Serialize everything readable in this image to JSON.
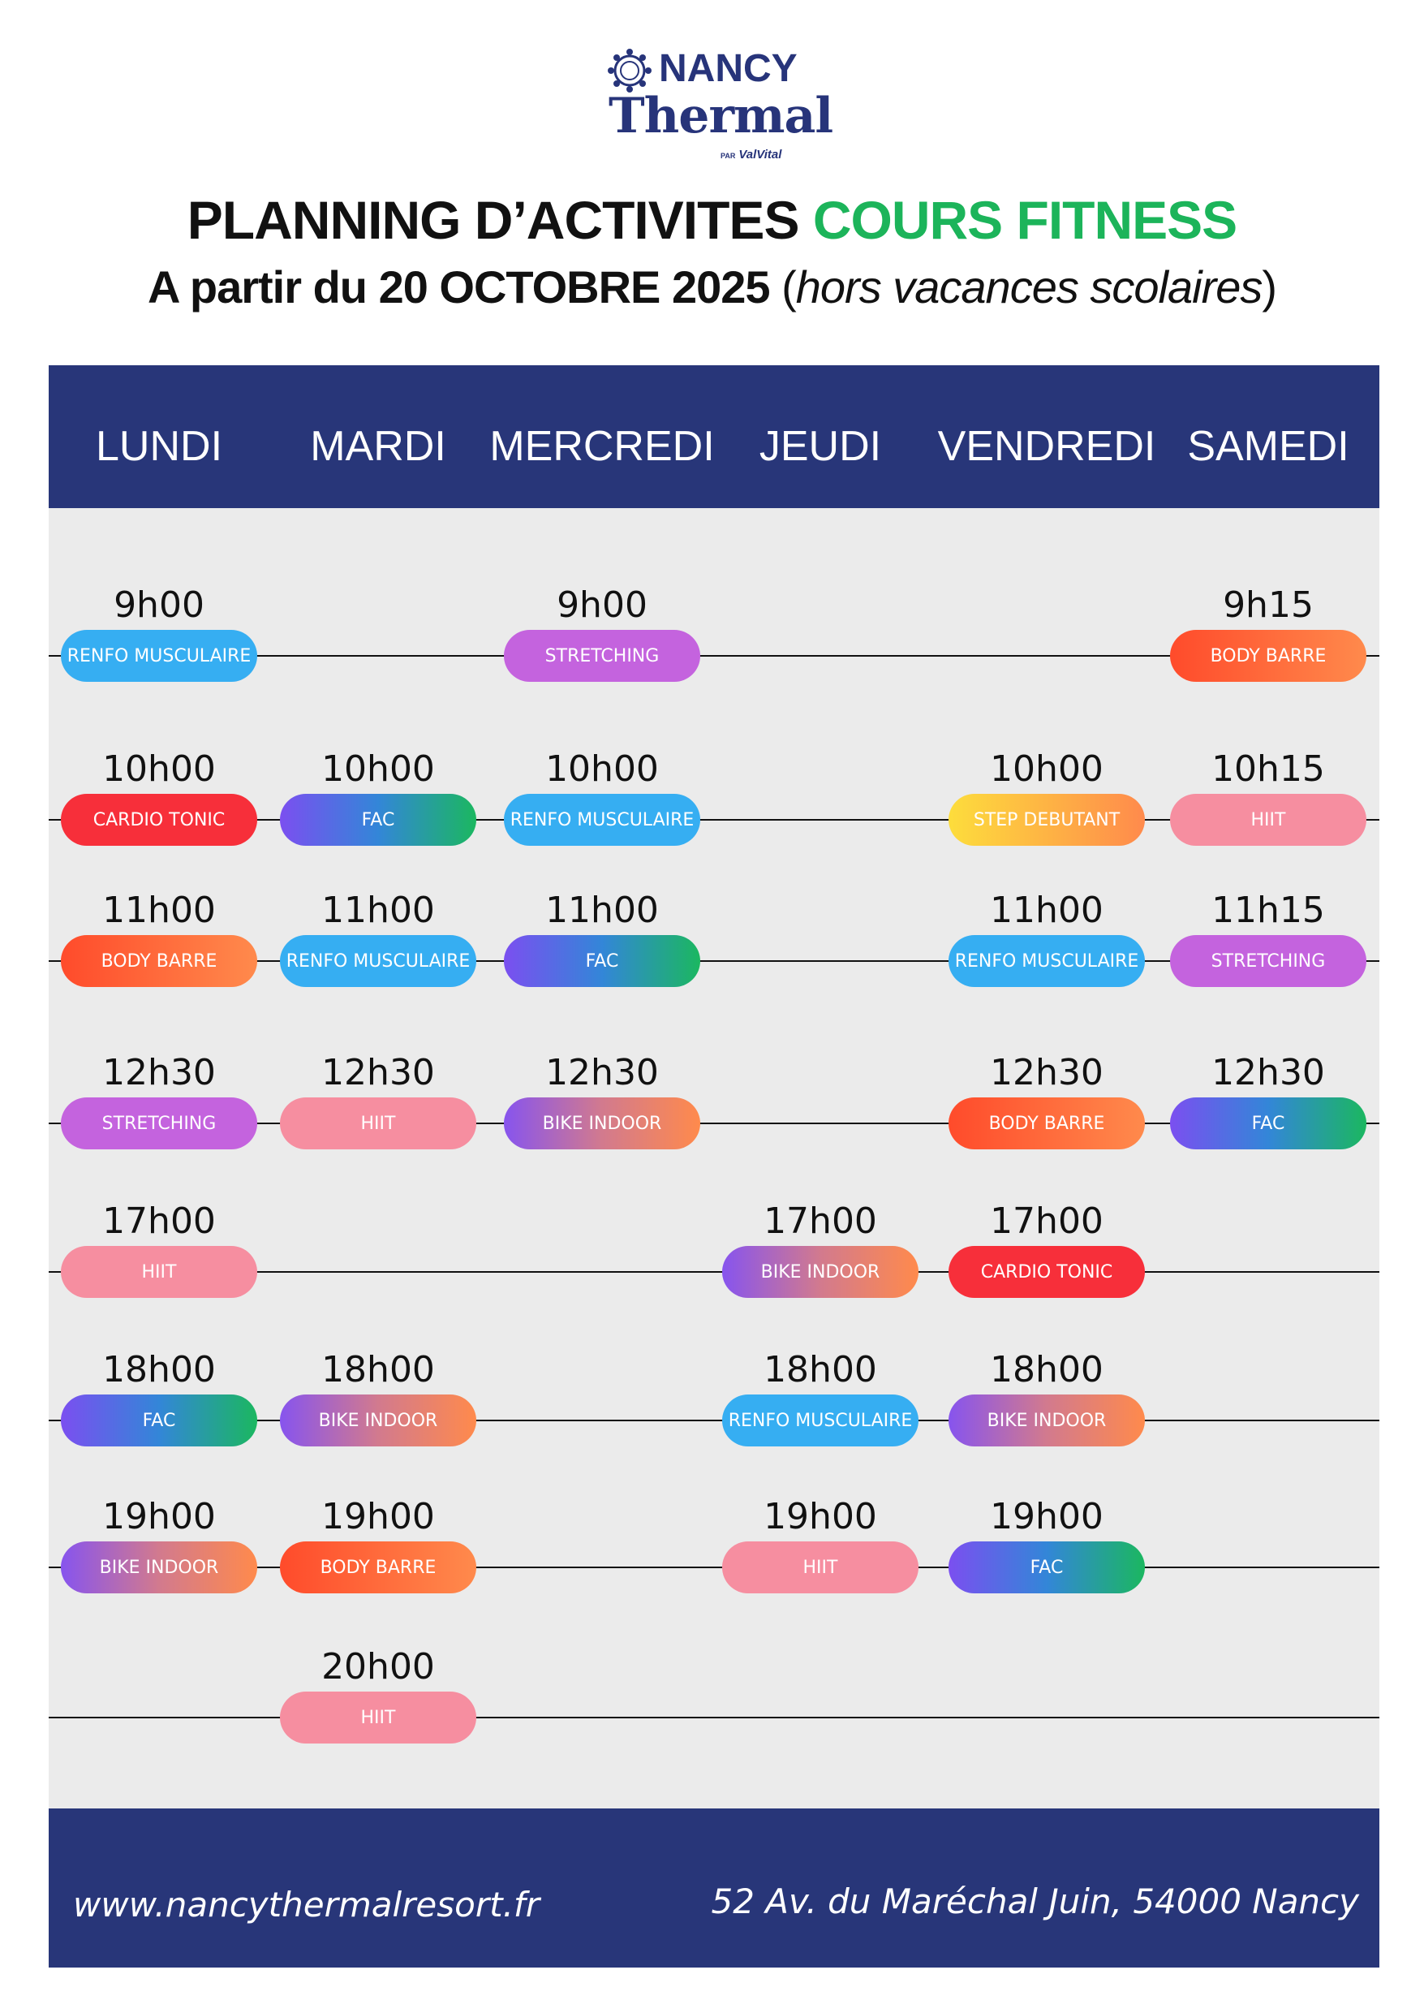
{
  "logo": {
    "name_top": "NANCY",
    "name_main": "Thermal",
    "par": "PAR",
    "brand": "ValVital"
  },
  "title": {
    "line1_a": "PLANNING D’ACTIVITES ",
    "line1_b": "COURS FITNESS",
    "line2_bold": "A partir du 20 OCTOBRE 2025 ",
    "line2_italic_open": "(",
    "line2_italic": "hors vacances scolaires",
    "line2_italic_close": ")"
  },
  "colors": {
    "navy": "#283679",
    "green_title": "#1cb45a",
    "panel": "#ebebeb",
    "RENFO MUSCULAIRE": "#36aef2",
    "STRETCHING": "#c463de",
    "BODY BARRE": "linear-gradient(90deg,#ff4b2b,#ff8a4c)",
    "CARDIO TONIC": "#f72f3a",
    "FAC": "linear-gradient(90deg,#7b4ff0,#3386d8,#1bb760)",
    "STEP DEBUTANT": "linear-gradient(90deg,#fddd3c,#ff8a4c)",
    "HIIT": "#f68ea0",
    "BIKE INDOOR": "linear-gradient(90deg,#8754ee,#d27a8e,#ff8a4c)"
  },
  "days": [
    "LUNDI",
    "MARDI",
    "MERCREDI",
    "JEUDI",
    "VENDREDI",
    "SAMEDI"
  ],
  "sessions": [
    {
      "day": 0,
      "row": 0,
      "time": "9h00",
      "activity": "RENFO MUSCULAIRE"
    },
    {
      "day": 2,
      "row": 0,
      "time": "9h00",
      "activity": "STRETCHING"
    },
    {
      "day": 5,
      "row": 0,
      "time": "9h15",
      "activity": "BODY BARRE"
    },
    {
      "day": 0,
      "row": 1,
      "time": "10h00",
      "activity": "CARDIO TONIC"
    },
    {
      "day": 1,
      "row": 1,
      "time": "10h00",
      "activity": "FAC"
    },
    {
      "day": 2,
      "row": 1,
      "time": "10h00",
      "activity": "RENFO MUSCULAIRE"
    },
    {
      "day": 4,
      "row": 1,
      "time": "10h00",
      "activity": "STEP DEBUTANT"
    },
    {
      "day": 5,
      "row": 1,
      "time": "10h15",
      "activity": "HIIT"
    },
    {
      "day": 0,
      "row": 2,
      "time": "11h00",
      "activity": "BODY BARRE"
    },
    {
      "day": 1,
      "row": 2,
      "time": "11h00",
      "activity": "RENFO MUSCULAIRE"
    },
    {
      "day": 2,
      "row": 2,
      "time": "11h00",
      "activity": "FAC"
    },
    {
      "day": 4,
      "row": 2,
      "time": "11h00",
      "activity": "RENFO MUSCULAIRE"
    },
    {
      "day": 5,
      "row": 2,
      "time": "11h15",
      "activity": "STRETCHING"
    },
    {
      "day": 0,
      "row": 3,
      "time": "12h30",
      "activity": "STRETCHING"
    },
    {
      "day": 1,
      "row": 3,
      "time": "12h30",
      "activity": "HIIT"
    },
    {
      "day": 2,
      "row": 3,
      "time": "12h30",
      "activity": "BIKE INDOOR"
    },
    {
      "day": 4,
      "row": 3,
      "time": "12h30",
      "activity": "BODY BARRE"
    },
    {
      "day": 5,
      "row": 3,
      "time": "12h30",
      "activity": "FAC"
    },
    {
      "day": 0,
      "row": 4,
      "time": "17h00",
      "activity": "HIIT"
    },
    {
      "day": 3,
      "row": 4,
      "time": "17h00",
      "activity": "BIKE INDOOR"
    },
    {
      "day": 4,
      "row": 4,
      "time": "17h00",
      "activity": "CARDIO TONIC"
    },
    {
      "day": 0,
      "row": 5,
      "time": "18h00",
      "activity": "FAC"
    },
    {
      "day": 1,
      "row": 5,
      "time": "18h00",
      "activity": "BIKE INDOOR"
    },
    {
      "day": 3,
      "row": 5,
      "time": "18h00",
      "activity": "RENFO MUSCULAIRE"
    },
    {
      "day": 4,
      "row": 5,
      "time": "18h00",
      "activity": "BIKE INDOOR"
    },
    {
      "day": 0,
      "row": 6,
      "time": "19h00",
      "activity": "BIKE INDOOR"
    },
    {
      "day": 1,
      "row": 6,
      "time": "19h00",
      "activity": "BODY BARRE"
    },
    {
      "day": 3,
      "row": 6,
      "time": "19h00",
      "activity": "HIIT"
    },
    {
      "day": 4,
      "row": 6,
      "time": "19h00",
      "activity": "FAC"
    },
    {
      "day": 1,
      "row": 7,
      "time": "20h00",
      "activity": "HIIT"
    }
  ],
  "footer": {
    "website": "www.nancythermalresort.fr",
    "address": "52 Av. du Maréchal Juin, 54000 Nancy"
  }
}
